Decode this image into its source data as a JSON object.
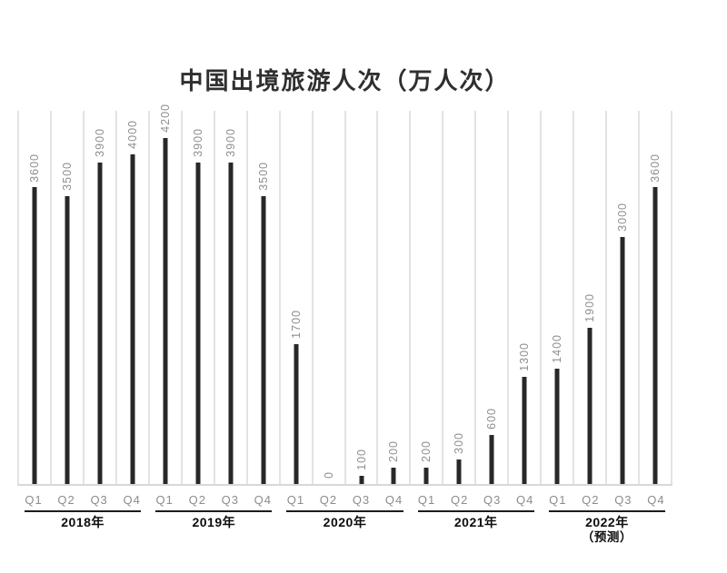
{
  "page": {
    "background": "#ffffff"
  },
  "chart_data": {
    "type": "bar",
    "title": "中国出境旅游人次（万人次）",
    "xlabel": "",
    "ylabel": "",
    "quarters": [
      "Q1",
      "Q2",
      "Q3",
      "Q4"
    ],
    "groups": [
      {
        "year": "2018年",
        "note": "",
        "values": [
          3600,
          3500,
          3900,
          4000
        ]
      },
      {
        "year": "2019年",
        "note": "",
        "values": [
          4200,
          3900,
          3900,
          3500
        ]
      },
      {
        "year": "2020年",
        "note": "",
        "values": [
          1700,
          0,
          100,
          200
        ]
      },
      {
        "year": "2021年",
        "note": "",
        "values": [
          200,
          300,
          600,
          1300
        ]
      },
      {
        "year": "2022年",
        "note": "（预测）",
        "values": [
          1400,
          1900,
          3000,
          3600
        ]
      }
    ],
    "categories": [
      "2018 Q1",
      "2018 Q2",
      "2018 Q3",
      "2018 Q4",
      "2019 Q1",
      "2019 Q2",
      "2019 Q3",
      "2019 Q4",
      "2020 Q1",
      "2020 Q2",
      "2020 Q3",
      "2020 Q4",
      "2021 Q1",
      "2021 Q2",
      "2021 Q3",
      "2021 Q4",
      "2022 Q1",
      "2022 Q2",
      "2022 Q3",
      "2022 Q4"
    ],
    "values": [
      3600,
      3500,
      3900,
      4000,
      4200,
      3900,
      3900,
      3500,
      1700,
      0,
      100,
      200,
      200,
      300,
      600,
      1300,
      1400,
      1900,
      3000,
      3600
    ],
    "ylim": [
      0,
      4530
    ],
    "grid": "vertical-category-splitlines",
    "legend": "none",
    "value_labels": "rotated-90-above-bars",
    "colors": {
      "bar": "#282828",
      "value_label": "#8f8f8f",
      "quarter_label": "#8c8c8c",
      "gridline": "#e3e3e3",
      "baseline": "#d8d8d8",
      "year_line": "#1c1c1c",
      "year_label": "#0d0d0d",
      "title": "#2f2f2f"
    }
  }
}
